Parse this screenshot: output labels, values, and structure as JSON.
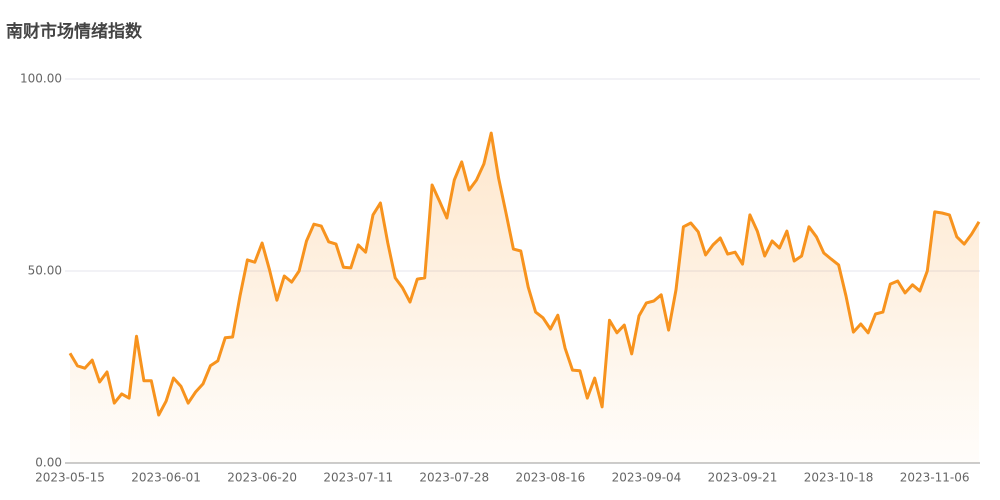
{
  "chart_data": {
    "type": "line",
    "title": "南财市场情绪指数",
    "categories": [
      "2023-05-15",
      null,
      null,
      null,
      null,
      null,
      null,
      null,
      null,
      null,
      null,
      null,
      null,
      "2023-06-01",
      null,
      null,
      null,
      null,
      null,
      null,
      null,
      null,
      null,
      null,
      null,
      null,
      "2023-06-20",
      null,
      null,
      null,
      null,
      null,
      null,
      null,
      null,
      null,
      null,
      null,
      null,
      "2023-07-11",
      null,
      null,
      null,
      null,
      null,
      null,
      null,
      null,
      null,
      null,
      null,
      null,
      "2023-07-28",
      null,
      null,
      null,
      null,
      null,
      null,
      null,
      null,
      null,
      null,
      null,
      null,
      "2023-08-16",
      null,
      null,
      null,
      null,
      null,
      null,
      null,
      null,
      null,
      null,
      null,
      null,
      "2023-09-04",
      null,
      null,
      null,
      null,
      null,
      null,
      null,
      null,
      null,
      null,
      null,
      null,
      "2023-09-21",
      null,
      null,
      null,
      null,
      null,
      null,
      null,
      null,
      null,
      null,
      null,
      null,
      "2023-10-18",
      null,
      null,
      null,
      null,
      null,
      null,
      null,
      null,
      null,
      null,
      null,
      null,
      "2023-11-06",
      null,
      null,
      null,
      null,
      null,
      null
    ],
    "values": [
      28.6,
      25.3,
      24.7,
      26.8,
      21.1,
      23.7,
      15.6,
      18,
      16.9,
      33,
      21.4,
      21.4,
      12.5,
      16.1,
      22.1,
      20,
      15.6,
      18.5,
      20.6,
      25.3,
      26.6,
      32.6,
      32.8,
      43.5,
      52.9,
      52.3,
      57.3,
      50.3,
      42.4,
      48.7,
      47.1,
      50,
      57.8,
      62.2,
      61.7,
      57.6,
      57,
      51,
      50.8,
      56.8,
      54.9,
      64.6,
      67.7,
      57.3,
      48.2,
      45.6,
      41.9,
      47.9,
      48.2,
      72.4,
      68.2,
      63.8,
      73.7,
      78.4,
      71.1,
      73.7,
      77.9,
      85.9,
      74.2,
      65.1,
      55.7,
      55.2,
      45.8,
      39.3,
      37.8,
      34.9,
      38.5,
      29.9,
      24.2,
      24,
      16.9,
      22.1,
      14.6,
      37.2,
      33.9,
      35.9,
      28.4,
      38.3,
      41.7,
      42.2,
      43.8,
      34.6,
      45.1,
      61.5,
      62.5,
      60.2,
      54.2,
      56.8,
      58.6,
      54.4,
      54.9,
      51.8,
      64.6,
      60.4,
      53.9,
      57.8,
      56,
      60.4,
      52.6,
      53.9,
      61.5,
      58.9,
      54.7,
      53.1,
      51.6,
      43.5,
      34.1,
      36.2,
      33.9,
      38.8,
      39.3,
      46.6,
      47.4,
      44.3,
      46.4,
      44.8,
      50,
      65.4,
      65.1,
      64.6,
      58.9,
      57,
      59.6,
      62.8
    ],
    "color": "#f7931e",
    "ylim": [
      0,
      100
    ],
    "yticks": [
      {
        "value": 0,
        "label": "0.00"
      },
      {
        "value": 50,
        "label": "50.00"
      },
      {
        "value": 100,
        "label": "100.00"
      }
    ],
    "grid": true
  }
}
